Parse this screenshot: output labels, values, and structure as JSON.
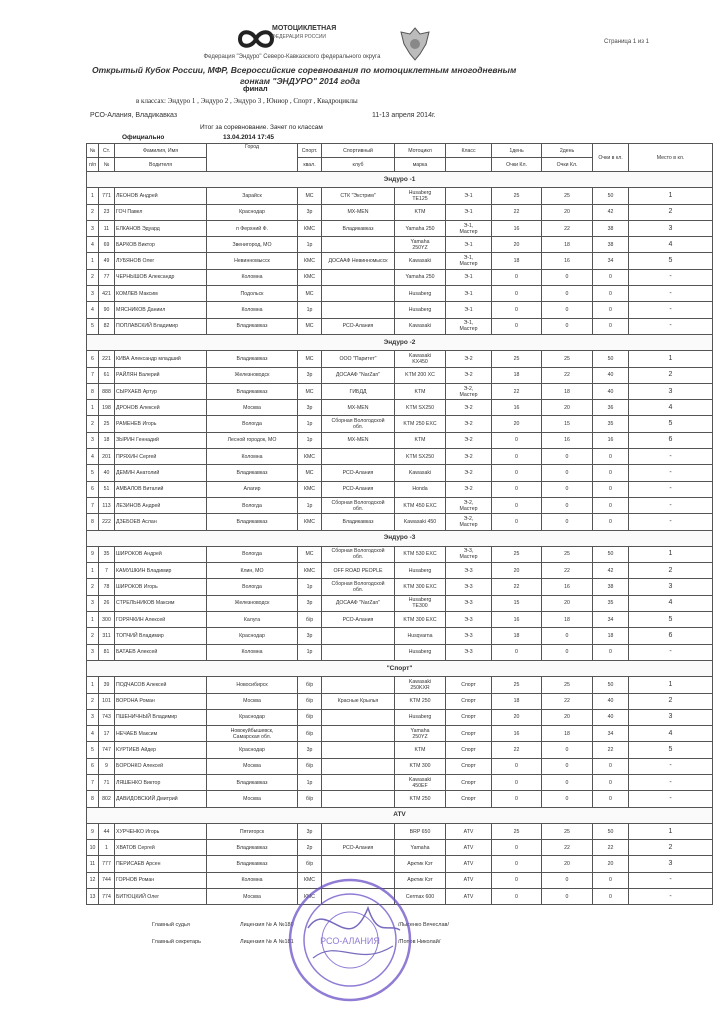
{
  "header": {
    "logo_line1": "МОТОЦИКЛЕТНАЯ",
    "logo_line2": "ФЕДЕРАЦИЯ РОССИИ",
    "page_number": "Страница 1 из 1",
    "federation": "Федерация \"Эндуро\" Северо-Кавказского федерального округа",
    "title_line1": "Открытый Кубок России, МФР, Всероссийские соревнования по мотоциклетным  многодневным",
    "title_line2": "гонкам \"ЭНДУРО\" 2014 года",
    "stage": "финал",
    "classes": "в классах: Эндуро 1 , Эндуро 2 , Эндуро 3 , Юниор , Спорт , Квадроциклы",
    "location": "РСО-Алания, Владикавказ",
    "dates": "11-13 апреля 2014г.",
    "result_title": "Итог за соревнование. Зачет по классам",
    "status": "Официально",
    "timestamp": "13.04.2014 17:45"
  },
  "columns": {
    "num_top": "№",
    "num_bottom": "п/п",
    "start_top": "Ст.",
    "start_bottom": "№",
    "name_top": "Фамилия,  Имя",
    "name_bottom": "Водителя",
    "city": "Город",
    "qual_top": "Спорт.",
    "qual_bottom": "квал.",
    "club_top": "Спортивный",
    "club_bottom": "клуб",
    "moto_top": "Мотоцикл",
    "moto_bottom": "марка",
    "class": "Класс",
    "day1_top": "1день",
    "day1_bottom": "Очки Кл.",
    "day2_top": "2день",
    "day2_bottom": "Очки Кл.",
    "points": "Очки в кл.",
    "place": "Место в кл."
  },
  "sections": [
    {
      "title": "Эндуро -1",
      "rows": [
        [
          "1",
          "771",
          "ЛЕОНОВ Андрей",
          "Зарайск",
          "МС",
          "СТК \"Экстрим\"",
          "Husaberg\nTE125",
          "Э-1",
          "25",
          "25",
          "50",
          "1"
        ],
        [
          "2",
          "23",
          "ГОЧ Павел",
          "Краснодар",
          "3р",
          "MX-MEN",
          "KTM",
          "Э-1",
          "22",
          "20",
          "42",
          "2"
        ],
        [
          "3",
          "11",
          "ЕЛКАНОВ Эдуард",
          "п Ферхний Ф.",
          "КМС",
          "Владикавказ",
          "Yamaha 250",
          "Э-1,\nМастер",
          "16",
          "22",
          "38",
          "3"
        ],
        [
          "4",
          "69",
          "БАРКОВ Виктор",
          "Звенигород, МО",
          "1р",
          "",
          "Yamaha\n250YZ",
          "Э-1",
          "20",
          "18",
          "38",
          "4"
        ],
        [
          "1",
          "49",
          "ЛУБЯНОВ Олег",
          "Невинномысск",
          "КМС",
          "ДОСААФ Невинномысск",
          "Kawasaki",
          "Э-1,\nМастер",
          "18",
          "16",
          "34",
          "5"
        ],
        [
          "2",
          "77",
          "ЧЕРНЫШОВ Александр",
          "Коломна",
          "КМС",
          "",
          "Yamaha 250",
          "Э-1",
          "0",
          "0",
          "0",
          "-"
        ],
        [
          "3",
          "421",
          "КОМЛЕВ Максим",
          "Подольск",
          "МС",
          "",
          "Husaberg",
          "Э-1",
          "0",
          "0",
          "0",
          "-"
        ],
        [
          "4",
          "90",
          "МЯСНИКОВ Даниил",
          "Коломна",
          "1р",
          "",
          "Husaberg",
          "Э-1",
          "0",
          "0",
          "0",
          "-"
        ],
        [
          "5",
          "82",
          "ПОПЛАВСКИЙ Владимир",
          "Владикавказ",
          "МС",
          "РСО-Алания",
          "Kawasaki",
          "Э-1,\nМастер",
          "0",
          "0",
          "0",
          "-"
        ]
      ]
    },
    {
      "title": "Эндуро -2",
      "rows": [
        [
          "6",
          "221",
          "КИВА Александр младший",
          "Владикавказ",
          "МС",
          "ООО \"Паритет\"",
          "Kawasaki\nKX450",
          "Э-2",
          "25",
          "25",
          "50",
          "1"
        ],
        [
          "7",
          "61",
          "РАЙЛЯН Валерий",
          "Железноводск",
          "3р",
          "ДОСААФ \"NarZan\"",
          "KTM 200 XC",
          "Э-2",
          "18",
          "22",
          "40",
          "2"
        ],
        [
          "8",
          "888",
          "СЫРХАЕВ Артур",
          "Владикавказ",
          "МС",
          "ГИБДД",
          "KTM",
          "Э-2,\nМастер",
          "22",
          "18",
          "40",
          "3"
        ],
        [
          "1",
          "198",
          "ДРОНОВ Алексей",
          "Москва",
          "3р",
          "MX-MEN",
          "KTM SX250",
          "Э-2",
          "16",
          "20",
          "36",
          "4"
        ],
        [
          "2",
          "25",
          "РАМЕНЕВ Игорь",
          "Вологда",
          "1р",
          "Сборная Вологодской\nобл.",
          "KTM 250 EXC",
          "Э-2",
          "20",
          "15",
          "35",
          "5"
        ],
        [
          "3",
          "18",
          "ЗЫРИН Геннадий",
          "Лесной городок, МО",
          "1р",
          "MX-MEN",
          "KTM",
          "Э-2",
          "0",
          "16",
          "16",
          "6"
        ],
        [
          "4",
          "201",
          "ПРЯХИН Сергей",
          "Коломна",
          "КМС",
          "",
          "KTM SX250",
          "Э-2",
          "0",
          "0",
          "0",
          "-"
        ],
        [
          "5",
          "40",
          "ДЕМИН Анатолий",
          "Владикавказ",
          "МС",
          "РСО-Алания",
          "Kawasaki",
          "Э-2",
          "0",
          "0",
          "0",
          "-"
        ],
        [
          "6",
          "51",
          "АМБАЛОВ Виталий",
          "Алагир",
          "КМС",
          "РСО-Алания",
          "Honda",
          "Э-2",
          "0",
          "0",
          "0",
          "-"
        ],
        [
          "7",
          "113",
          "ЛЕЗИНОВ Андрей",
          "Вологда",
          "1р",
          "Сборная Вологодской\nобл.",
          "KTM 450 EXC",
          "Э-2,\nМастер",
          "0",
          "0",
          "0",
          "-"
        ],
        [
          "8",
          "222",
          "ДЗЕБОЕВ Аслан",
          "Владикавказ",
          "КМС",
          "Владикавказ",
          "Kawasaki 450",
          "Э-2,\nМастер",
          "0",
          "0",
          "0",
          "-"
        ]
      ]
    },
    {
      "title": "Эндуро -3",
      "rows": [
        [
          "9",
          "35",
          "ШИРОКОВ Андрей",
          "Вологда",
          "МС",
          "Сборная Вологодской\nобл.",
          "KTM 530 EXC",
          "Э-3,\nМастер",
          "25",
          "25",
          "50",
          "1"
        ],
        [
          "1",
          "7",
          "КАМУШКИН Владимир",
          "Клин, МО",
          "КМС",
          "OFF ROAD PEOPLE",
          "Husaberg",
          "Э-3",
          "20",
          "22",
          "42",
          "2"
        ],
        [
          "2",
          "78",
          "ШИРОКОВ Игорь",
          "Вологда",
          "1р",
          "Сборная Вологодской\nобл.",
          "KTM 300 EXC",
          "Э-3",
          "22",
          "16",
          "38",
          "3"
        ],
        [
          "3",
          "26",
          "СТРЕЛЬНИКОВ Максим",
          "Железноводск",
          "3р",
          "ДОСААФ \"NarZan\"",
          "Husaberg\nTE300",
          "Э-3",
          "15",
          "20",
          "35",
          "4"
        ],
        [
          "1",
          "300",
          "ГОРЯЧКИН Алексей",
          "Калуга",
          "б/р",
          "РСО-Алания",
          "KTM 300 EXC",
          "Э-3",
          "16",
          "18",
          "34",
          "5"
        ],
        [
          "2",
          "311",
          "ТОПЧИЙ Владимир",
          "Краснодар",
          "3р",
          "",
          "Husqvarna",
          "Э-3",
          "18",
          "0",
          "18",
          "6"
        ],
        [
          "3",
          "81",
          "БАТАЕВ Алексей",
          "Коломна",
          "1р",
          "",
          "Husaberg",
          "Э-3",
          "0",
          "0",
          "0",
          "-"
        ]
      ]
    },
    {
      "title": "\"Спорт\"",
      "rows": [
        [
          "1",
          "39",
          "ПОДЧАСОВ Алексей",
          "Новосибирск",
          "б/р",
          "",
          "Kawasaki\n250KXR",
          "Спорт",
          "25",
          "25",
          "50",
          "1"
        ],
        [
          "2",
          "101",
          "ВОРОНА Роман",
          "Москва",
          "б/р",
          "Красные Крылья",
          "KTM 250",
          "Спорт",
          "18",
          "22",
          "40",
          "2"
        ],
        [
          "3",
          "743",
          "ПШЕНИЧНЫЙ Владимир",
          "Краснодар",
          "б/р",
          "",
          "Husaberg",
          "Спорт",
          "20",
          "20",
          "40",
          "3"
        ],
        [
          "4",
          "17",
          "НЕЧАЕВ Максим",
          "Новокуйбышевск,\nСамарская обл.",
          "б/р",
          "",
          "Yamaha\n250YZ",
          "Спорт",
          "16",
          "18",
          "34",
          "4"
        ],
        [
          "5",
          "747",
          "КУРТИЕВ Айдер",
          "Краснодар",
          "3р",
          "",
          "KTM",
          "Спорт",
          "22",
          "0",
          "22",
          "5"
        ],
        [
          "6",
          "9",
          "БОРОНКО Алексей",
          "Москва",
          "б/р",
          "",
          "KTM 300",
          "Спорт",
          "0",
          "0",
          "0",
          "-"
        ],
        [
          "7",
          "71",
          "ЛЯШЕНКО Виктор",
          "Владикавказ",
          "1р",
          "",
          "Kawasaki\n450EF",
          "Спорт",
          "0",
          "0",
          "0",
          "-"
        ],
        [
          "8",
          "802",
          "ДАВИДОВСКИЙ Дмитрий",
          "Москва",
          "б/р",
          "",
          "KTM 250",
          "Спорт",
          "0",
          "0",
          "0",
          "-"
        ]
      ]
    },
    {
      "title": "ATV",
      "rows": [
        [
          "9",
          "44",
          "ХУРЧЕНКО Игорь",
          "Пятигорск",
          "3р",
          "",
          "BRP 650",
          "ATV",
          "25",
          "25",
          "50",
          "1"
        ],
        [
          "10",
          "1",
          "ХВАТОВ Сергей",
          "Владикавказ",
          "2р",
          "РСО-Алания",
          "Yamaha",
          "ATV",
          "0",
          "22",
          "22",
          "2"
        ],
        [
          "11",
          "777",
          "ПЕРИСАЕВ Арсен",
          "Владикавказ",
          "б/р",
          "",
          "Арктик Кэт",
          "ATV",
          "0",
          "20",
          "20",
          "3"
        ],
        [
          "12",
          "744",
          "ГОРНОВ Роман",
          "Коломна",
          "КМС",
          "",
          "Арктик Кэт",
          "ATV",
          "0",
          "0",
          "0",
          "-"
        ],
        [
          "13",
          "774",
          "БИТЮЦКИЙ Олег",
          "Москва",
          "КМС",
          "",
          "Cermax 600",
          "ATV",
          "0",
          "0",
          "0",
          "-"
        ]
      ]
    }
  ],
  "footer": {
    "chief_judge_label": "Главный судья",
    "chief_judge_license": "Лицензия № А №180",
    "chief_judge_name": "/Лысенко Вячеслав/",
    "chief_secretary_label": "Главный секретарь",
    "chief_secretary_license": "Лицензия № А №181",
    "chief_secretary_name": "/Попов Николай/"
  },
  "stamp": {
    "text": "РСО-АЛАНИЯ",
    "color": "#6b4fc8"
  }
}
